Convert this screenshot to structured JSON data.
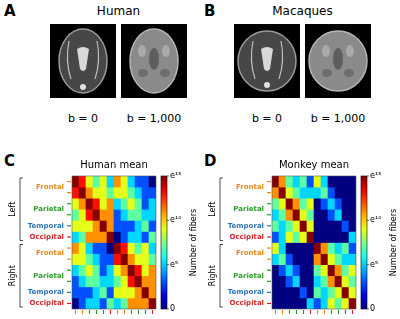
{
  "panels": [
    {
      "letter": "A",
      "title": "Human",
      "images": [
        {
          "label": "b = 0"
        },
        {
          "label": "b = 1,000"
        }
      ]
    },
    {
      "letter": "B",
      "title": "Macaques",
      "images": [
        {
          "label": "b = 0"
        },
        {
          "label": "b = 1,000"
        }
      ]
    }
  ],
  "chart_data": [
    {
      "letter": "C",
      "type": "heatmap",
      "title": "Human mean",
      "lobes": [
        {
          "name": "Frontal",
          "color": "#e8891c"
        },
        {
          "name": "Parietal",
          "color": "#2ca02c"
        },
        {
          "name": "Temporal",
          "color": "#2e75b6"
        },
        {
          "name": "Occipital",
          "color": "#d62728"
        }
      ],
      "row_hemispheres": [
        "Left",
        "Left",
        "Left",
        "Left",
        "Left",
        "Left",
        "Right",
        "Right",
        "Right",
        "Right",
        "Right",
        "Right"
      ],
      "row_lobes": [
        "Frontal",
        "Frontal",
        "Parietal",
        "Parietal",
        "Temporal",
        "Occipital",
        "Frontal",
        "Frontal",
        "Parietal",
        "Parietal",
        "Temporal",
        "Occipital"
      ],
      "cells": [
        [
          3000000,
          400000,
          8000,
          1100,
          8000,
          150,
          60000,
          8000,
          150,
          20,
          20,
          0
        ],
        [
          400000,
          3000000,
          60000,
          8000,
          8000,
          1100,
          8000,
          8000,
          1100,
          150,
          20,
          20
        ],
        [
          8000,
          60000,
          3000000,
          400000,
          8000,
          60000,
          150,
          1100,
          8000,
          1100,
          20,
          150
        ],
        [
          1100,
          8000,
          400000,
          3000000,
          60000,
          60000,
          20,
          150,
          1100,
          1100,
          150,
          150
        ],
        [
          8000,
          8000,
          8000,
          60000,
          3000000,
          60000,
          20,
          20,
          20,
          150,
          1100,
          20
        ],
        [
          150,
          1100,
          60000,
          60000,
          60000,
          3000000,
          0,
          20,
          150,
          150,
          20,
          1100
        ],
        [
          60000,
          8000,
          150,
          20,
          20,
          0,
          3000000,
          400000,
          8000,
          1100,
          8000,
          150
        ],
        [
          8000,
          8000,
          1100,
          150,
          20,
          20,
          400000,
          3000000,
          60000,
          8000,
          8000,
          1100
        ],
        [
          150,
          1100,
          8000,
          1100,
          20,
          150,
          8000,
          60000,
          3000000,
          400000,
          8000,
          60000
        ],
        [
          20,
          150,
          1100,
          1100,
          150,
          150,
          1100,
          8000,
          400000,
          3000000,
          60000,
          60000
        ],
        [
          20,
          20,
          20,
          150,
          1100,
          20,
          8000,
          8000,
          8000,
          60000,
          3000000,
          60000
        ],
        [
          0,
          20,
          150,
          150,
          20,
          1100,
          150,
          1100,
          60000,
          60000,
          60000,
          3000000
        ]
      ],
      "colorbar": {
        "label": "Number of fibers",
        "range": [
          0,
          3269017.37
        ],
        "ticks": [
          {
            "value": 3269017.37,
            "label": "e¹⁵"
          },
          {
            "value": 22026.47,
            "label": "e¹⁰"
          },
          {
            "value": 148.41,
            "label": "e⁵"
          },
          0
        ]
      },
      "tick_labels": false
    },
    {
      "letter": "D",
      "type": "heatmap",
      "title": "Monkey mean",
      "lobes": [
        {
          "name": "Frontal",
          "color": "#e8891c"
        },
        {
          "name": "Parietal",
          "color": "#2ca02c"
        },
        {
          "name": "Temporal",
          "color": "#2e75b6"
        },
        {
          "name": "Occipital",
          "color": "#d62728"
        }
      ],
      "row_hemispheres": [
        "Left",
        "Left",
        "Left",
        "Left",
        "Left",
        "Left",
        "Right",
        "Right",
        "Right",
        "Right",
        "Right",
        "Right"
      ],
      "row_lobes": [
        "Frontal",
        "Frontal",
        "Parietal",
        "Parietal",
        "Temporal",
        "Occipital",
        "Frontal",
        "Frontal",
        "Parietal",
        "Parietal",
        "Temporal",
        "Occipital"
      ],
      "cells": [
        [
          3000000,
          60000,
          1100,
          150,
          1100,
          20,
          8000,
          150,
          0,
          0,
          0,
          0
        ],
        [
          60000,
          3000000,
          8000,
          1100,
          150,
          150,
          150,
          1100,
          20,
          0,
          0,
          0
        ],
        [
          1100,
          8000,
          3000000,
          60000,
          1100,
          8000,
          0,
          20,
          150,
          20,
          0,
          0
        ],
        [
          150,
          1100,
          60000,
          3000000,
          8000,
          1100,
          0,
          0,
          20,
          150,
          0,
          0
        ],
        [
          1100,
          150,
          1100,
          8000,
          3000000,
          8000,
          0,
          0,
          0,
          0,
          20,
          0
        ],
        [
          20,
          150,
          8000,
          1100,
          8000,
          3000000,
          0,
          0,
          0,
          0,
          0,
          150
        ],
        [
          8000,
          150,
          0,
          0,
          0,
          0,
          3000000,
          60000,
          1100,
          150,
          1100,
          20
        ],
        [
          150,
          1100,
          20,
          0,
          0,
          0,
          60000,
          3000000,
          8000,
          1100,
          150,
          150
        ],
        [
          0,
          20,
          150,
          20,
          0,
          0,
          1100,
          8000,
          3000000,
          60000,
          1100,
          8000
        ],
        [
          0,
          0,
          20,
          150,
          0,
          0,
          150,
          1100,
          60000,
          3000000,
          8000,
          1100
        ],
        [
          0,
          0,
          0,
          0,
          20,
          0,
          1100,
          150,
          1100,
          8000,
          3000000,
          8000
        ],
        [
          0,
          0,
          0,
          0,
          0,
          150,
          20,
          150,
          8000,
          1100,
          8000,
          3000000
        ]
      ],
      "colorbar": {
        "label": "Number of fibers",
        "range": [
          0,
          3269017.37
        ],
        "ticks": [
          {
            "value": 3269017.37,
            "label": "e¹⁵"
          },
          {
            "value": 22026.47,
            "label": "e¹⁰"
          },
          {
            "value": 148.41,
            "label": "e⁵"
          },
          0
        ]
      },
      "tick_labels": false
    }
  ]
}
